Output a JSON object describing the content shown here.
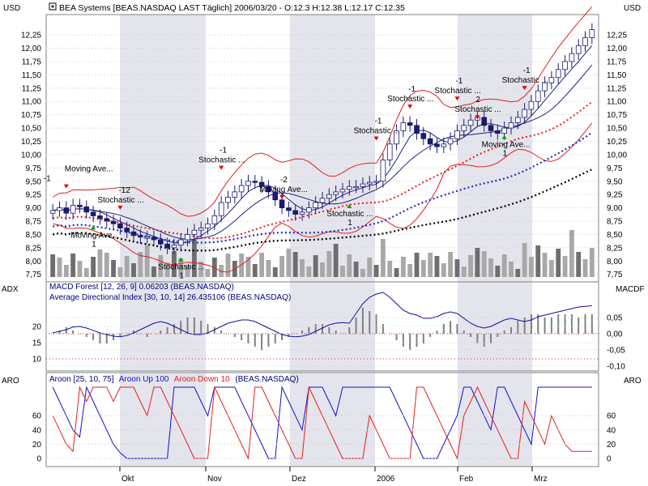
{
  "colors": {
    "background": "#ffffff",
    "plot_bg": "#ffffff",
    "band": "#e4e4ec",
    "grid": "#c8c8c8",
    "candle_up": "#ffffff",
    "candle_down": "#1a1a6e",
    "bollinger": "#e02020",
    "ma_short": "#202080",
    "ma_red": "#e02020",
    "ma_blue": "#2030c0",
    "ma_black": "#000000",
    "volume": "#909090",
    "macd": "#808080",
    "adx": "#1010a0",
    "aroon_up": "#1010d0",
    "aroon_down": "#e02020",
    "signal_red": "#e00000",
    "signal_green": "#00a000",
    "text": "#000000",
    "panel_title_blue": "#000080",
    "ref_line": "#d03030"
  },
  "header": {
    "icon": "plus-box-icon",
    "title": "BEA Systems [BEAS.NASDAQ LAST Täglich] 2006/03/20 - O:12.3 H:12.38 L:12.17 C:12.35",
    "unit_left": "USD",
    "unit_right": "USD"
  },
  "x_axis": {
    "labels": [
      "Okt",
      "Nov",
      "Dez",
      "2006",
      "Feb",
      "Mrz"
    ],
    "shaded_months": [
      1,
      3,
      5
    ]
  },
  "panels": {
    "price": {
      "y_ticks": [
        "7,75",
        "8,00",
        "8,25",
        "8,50",
        "8,75",
        "9,00",
        "9,25",
        "9,50",
        "9,75",
        "10,00",
        "10,25",
        "10,50",
        "10,75",
        "11,00",
        "11,25",
        "11,50",
        "11,75",
        "12,00",
        "12,25"
      ]
    },
    "macd": {
      "title": "MACD Forest [12, 26, 9] 0.06203 (BEAS.NASDAQ)",
      "left_label": "ADX",
      "right_label": "MACDF",
      "right_ticks": [
        "0,05",
        "0,00",
        "-0,05",
        "-0,10"
      ]
    },
    "adx": {
      "title": "Average Directional Index [30, 10, 14] 26.435106 (BEAS.NASDAQ)",
      "left_ticks": [
        "20",
        "15",
        "10"
      ]
    },
    "aroon": {
      "title_prefix": "Aroon [25, 10, 75]",
      "up_label": "Aroon Up 100",
      "down_label": "Aroon Down 10",
      "title_suffix": "(BEAS.NASDAQ)",
      "left_label": "ARO",
      "right_label": "ARO",
      "ticks": [
        "0",
        "20",
        "40",
        "60"
      ]
    }
  },
  "annotations": {
    "texts": [
      "-1",
      "Moving Ave...",
      "Stochastic ...",
      "-12",
      "1",
      "2",
      "-2"
    ]
  },
  "chart_data": [
    {
      "type": "candlestick",
      "title": "BEA Systems [BEAS.NASDAQ LAST Täglich] 2006/03/20 - O:12.3 H:12.38 L:12.17 C:12.35",
      "ylabel": "USD",
      "ylim": [
        7.7,
        12.45
      ],
      "series": [
        {
          "name": "BEA Systems",
          "values": [
            8.95,
            9.0,
            8.9,
            9.05,
            9.02,
            8.92,
            8.85,
            8.8,
            8.75,
            8.7,
            8.62,
            8.55,
            8.48,
            8.45,
            8.45,
            8.4,
            8.32,
            8.25,
            8.3,
            8.4,
            8.5,
            8.58,
            8.62,
            8.7,
            8.85,
            9.1,
            9.2,
            9.3,
            9.42,
            9.5,
            9.48,
            9.4,
            9.3,
            9.15,
            9.0,
            8.95,
            8.88,
            8.92,
            9.0,
            9.1,
            9.18,
            9.25,
            9.3,
            9.35,
            9.4,
            9.4,
            9.45,
            9.48,
            9.5,
            9.9,
            10.2,
            10.45,
            10.6,
            10.55,
            10.4,
            10.3,
            10.2,
            10.15,
            10.2,
            10.3,
            10.45,
            10.55,
            10.65,
            10.7,
            10.55,
            10.45,
            10.4,
            10.5,
            10.6,
            10.7,
            10.85,
            11.0,
            11.2,
            11.35,
            11.45,
            11.6,
            11.75,
            11.9,
            12.05,
            12.2,
            12.35
          ]
        }
      ]
    },
    {
      "type": "bar",
      "title": "MACD Forest [12, 26, 9] 0.06203 (BEAS.NASDAQ)",
      "ylabel": "MACDF",
      "ylim": [
        -0.11,
        0.1
      ],
      "series": [
        {
          "name": "MACD Forest",
          "values": [
            0.0,
            0.01,
            0.02,
            0.01,
            0.0,
            -0.01,
            -0.02,
            -0.03,
            -0.03,
            -0.02,
            -0.01,
            0.0,
            0.01,
            0.0,
            -0.01,
            0.0,
            0.01,
            0.02,
            0.03,
            0.04,
            0.05,
            0.05,
            0.04,
            0.03,
            0.02,
            0.01,
            0.0,
            -0.01,
            -0.02,
            -0.03,
            -0.04,
            -0.05,
            -0.04,
            -0.03,
            -0.02,
            -0.01,
            0.0,
            0.01,
            0.02,
            0.03,
            0.03,
            0.02,
            0.01,
            0.0,
            0.02,
            0.05,
            0.08,
            0.07,
            0.06,
            0.03,
            0.0,
            -0.02,
            -0.04,
            -0.05,
            -0.04,
            -0.03,
            -0.01,
            0.01,
            0.03,
            0.04,
            0.03,
            0.01,
            -0.01,
            -0.03,
            -0.04,
            -0.03,
            -0.01,
            0.01,
            0.02,
            0.04,
            0.05,
            0.06,
            0.06,
            0.05,
            0.05,
            0.06,
            0.06,
            0.06,
            0.05,
            0.06,
            0.06
          ]
        }
      ]
    },
    {
      "type": "line",
      "title": "Average Directional Index [30, 10, 14] 26.435106 (BEAS.NASDAQ)",
      "ylabel": "ADX",
      "series": [
        {
          "name": "Average Directional Index",
          "values": [
            18.0,
            18.5,
            19.0,
            19.8,
            20.0,
            19.5,
            18.8,
            18.0,
            17.5,
            17.0,
            16.8,
            17.2,
            18.0,
            19.0,
            20.0,
            21.0,
            21.5,
            21.0,
            20.0,
            19.0,
            18.0,
            17.5,
            17.5,
            18.0,
            19.0,
            20.0,
            21.0,
            21.5,
            22.0,
            22.0,
            21.5,
            20.5,
            19.5,
            18.5,
            17.5,
            17.0,
            16.8,
            17.0,
            17.5,
            18.5,
            19.5,
            20.5,
            21.0,
            21.2,
            21.0,
            24.0,
            27.0,
            29.0,
            30.0,
            30.5,
            29.0,
            27.0,
            25.0,
            24.0,
            23.5,
            22.5,
            22.5,
            23.0,
            24.0,
            24.5,
            24.0,
            22.5,
            21.0,
            20.0,
            19.5,
            20.0,
            21.0,
            22.0,
            22.5,
            22.0,
            21.5,
            22.0,
            23.0,
            23.5,
            24.0,
            24.5,
            25.0,
            25.5,
            26.0,
            26.2,
            26.4
          ]
        }
      ]
    },
    {
      "type": "line",
      "title": "Aroon [25, 10, 75] Aroon Up 100 Aroon Down 10 (BEAS.NASDAQ)",
      "ylabel": "ARO",
      "ylim": [
        0,
        100
      ],
      "series": [
        {
          "name": "Aroon Up",
          "values": [
            100,
            80,
            60,
            40,
            30,
            100,
            80,
            60,
            40,
            20,
            8,
            0,
            0,
            0,
            0,
            0,
            0,
            0,
            100,
            100,
            100,
            100,
            80,
            60,
            100,
            100,
            100,
            100,
            80,
            60,
            40,
            20,
            0,
            0,
            100,
            80,
            60,
            40,
            100,
            100,
            100,
            80,
            60,
            100,
            100,
            100,
            100,
            100,
            100,
            100,
            100,
            80,
            60,
            40,
            20,
            0,
            0,
            0,
            20,
            40,
            60,
            100,
            100,
            80,
            60,
            40,
            100,
            100,
            80,
            60,
            40,
            20,
            100,
            100,
            100,
            100,
            100,
            100,
            100,
            100,
            100
          ]
        },
        {
          "name": "Aroon Down",
          "values": [
            60,
            40,
            20,
            10,
            100,
            80,
            100,
            100,
            100,
            80,
            100,
            100,
            100,
            80,
            60,
            100,
            100,
            80,
            60,
            40,
            20,
            0,
            0,
            0,
            100,
            80,
            60,
            40,
            20,
            0,
            100,
            100,
            80,
            60,
            40,
            20,
            0,
            0,
            100,
            80,
            60,
            40,
            20,
            0,
            0,
            0,
            0,
            60,
            40,
            20,
            0,
            0,
            0,
            0,
            100,
            100,
            80,
            60,
            40,
            20,
            0,
            60,
            80,
            100,
            80,
            60,
            40,
            20,
            0,
            0,
            80,
            60,
            40,
            20,
            60,
            40,
            20,
            10,
            10,
            10,
            10
          ]
        }
      ]
    }
  ]
}
